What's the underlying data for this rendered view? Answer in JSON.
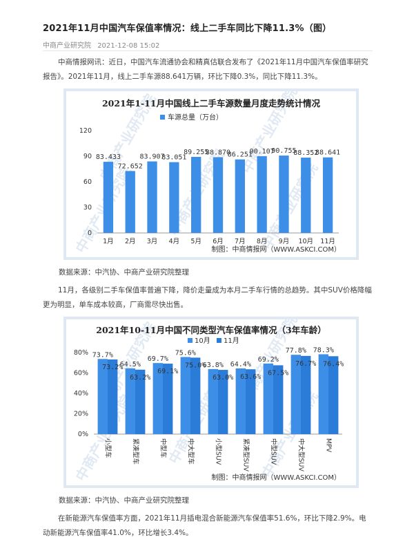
{
  "article": {
    "title": "2021年11月中国汽车保值率情况：线上二手车同比下降11.3%（图）",
    "source_name": "中商产业研究院",
    "date": "2021-12-08 15:02",
    "para1": "中商情报网讯：近日，中国汽车流通协会和精真估联合发布了《2021年11月中国汽车保值率研究报告》。2021年11月，线上二手车源88.641万辆，环比下降0.3%，同比下降11.3%。",
    "source1": "数据来源：中汽协、中商产业研究院整理",
    "para2": "11月，各级别二手车保值率普遍下降，降价走量成为本月二手车行情的总趋势。其中SUV价格降幅更为明显，单车成本较高，厂商需尽快出售。",
    "source2": "数据来源：中汽协、中商产业研究院整理",
    "para3": "在新能源汽车保值率方面，2021年11月插电混合新能源汽车保值率51.6%，环比下降2.9%。电动新能源汽车保值率41.0%，环比增长3.4%。"
  },
  "chart_data": [
    {
      "type": "bar",
      "title": "2021年1-11月中国线上二手车源数量月度走势统计情况",
      "categories": [
        "1月",
        "2月",
        "3月",
        "4月",
        "5月",
        "6月",
        "7月",
        "8月",
        "9月",
        "10月",
        "11月"
      ],
      "series": [
        {
          "name": "车源总量（万台）",
          "values": [
            83.433,
            72.652,
            83.907,
            83.051,
            89.255,
            88.87,
            86.251,
            90.107,
            90.755,
            88.352,
            88.641
          ]
        }
      ],
      "data_labels": [
        "83.433",
        "72.652",
        "83.907",
        "83.051",
        "89.255",
        "88.870",
        "86.251",
        "90.107",
        "90.755",
        "88.352",
        "88.641"
      ],
      "yticks": [
        "0",
        "30",
        "60",
        "90",
        "120"
      ],
      "ylim": [
        0,
        120
      ],
      "legend": "top-center",
      "color": "#3d8ee6",
      "credit": "制图：中商情报网（WWW.ASKCI.COM）",
      "watermark": "中商产业研究院"
    },
    {
      "type": "bar",
      "title": "2021年10-11月中国不同类型汽车保值率情况（3年车龄）",
      "categories": [
        "小型车",
        "紧凑型车",
        "中型车",
        "中大型车",
        "小型SUV",
        "紧凑型SUV",
        "中型SUV",
        "中大型SUV",
        "MPV"
      ],
      "series": [
        {
          "name": "10月",
          "values": [
            73.7,
            64.5,
            69.7,
            75.6,
            63.8,
            64.4,
            69.2,
            77.8,
            78.3
          ],
          "labels": [
            "73.7%",
            "64.5%",
            "69.7%",
            "75.6%",
            "63.8%",
            "64.4%",
            "69.2%",
            "77.8%",
            "78.3%"
          ],
          "color": "#3d8ee6"
        },
        {
          "name": "11月",
          "values": [
            73.2,
            63.2,
            69.1,
            75.0,
            63.0,
            63.6,
            67.5,
            76.7,
            76.4
          ],
          "labels": [
            "73.2%",
            "63.2%",
            "69.1%",
            "75.0%",
            "63.0%",
            "63.6%",
            "67.5%",
            "76.7%",
            "76.4%"
          ],
          "color": "#2b7bd8"
        }
      ],
      "yticks": [
        "0%",
        "20%",
        "40%",
        "60%",
        "80%"
      ],
      "ylim": [
        0,
        80
      ],
      "legend": "top-center",
      "credit": "制图：中商情报网（WWW.ASKCI.COM）",
      "watermark": "中商产业研究院"
    }
  ]
}
